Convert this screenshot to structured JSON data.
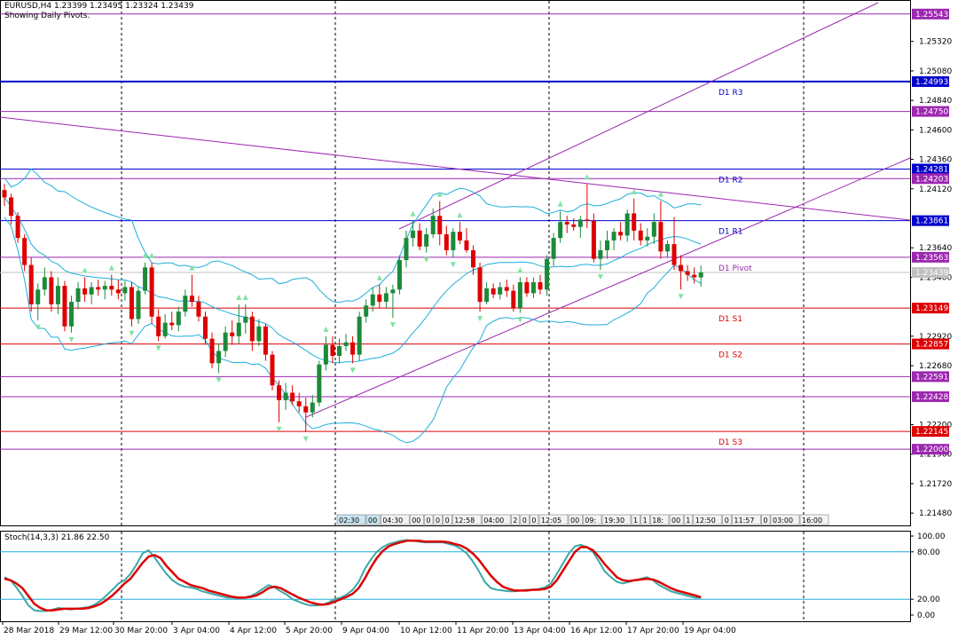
{
  "header": {
    "symbol_line": "EURUSD,H4  1.23399 1.23495 1.23324 1.23439",
    "subtitle": "Showing Daily Pivots."
  },
  "stoch_panel": {
    "label": "Stoch(14,3,3) 21.86 22.50"
  },
  "chart_data": {
    "type": "candlestick",
    "instrument": "EURUSD",
    "timeframe": "H4",
    "ohlc_current": {
      "open": 1.23399,
      "high": 1.23495,
      "low": 1.23324,
      "close": 1.23439
    },
    "price_axis": {
      "ylim": [
        1.2138,
        1.2565
      ],
      "ticks": [
        "1.25320",
        "1.25080",
        "1.24840",
        "1.24600",
        "1.24360",
        "1.24120",
        "1.23640",
        "1.23400",
        "1.22920",
        "1.22680",
        "1.22200",
        "1.21960",
        "1.21720",
        "1.21480"
      ]
    },
    "price_labels": [
      {
        "value": 1.25543,
        "text": "1.25543",
        "color": "#9c27b0"
      },
      {
        "value": 1.24993,
        "text": "1.24993",
        "color": "#0000cd"
      },
      {
        "value": 1.2475,
        "text": "1.24750",
        "color": "#9c27b0"
      },
      {
        "value": 1.24281,
        "text": "1.24281",
        "color": "#0000cd"
      },
      {
        "value": 1.24203,
        "text": "1.24203",
        "color": "#9c27b0"
      },
      {
        "value": 1.23861,
        "text": "1.23861",
        "color": "#0000cd"
      },
      {
        "value": 1.23563,
        "text": "1.23563",
        "color": "#9c27b0"
      },
      {
        "value": 1.23439,
        "text": "1.23439",
        "color": "#c0c0c0"
      },
      {
        "value": 1.23149,
        "text": "1.23149",
        "color": "#dd0000"
      },
      {
        "value": 1.22857,
        "text": "1.22857",
        "color": "#dd0000"
      },
      {
        "value": 1.22591,
        "text": "1.22591",
        "color": "#9c27b0"
      },
      {
        "value": 1.22428,
        "text": "1.22428",
        "color": "#9c27b0"
      },
      {
        "value": 1.22145,
        "text": "1.22145",
        "color": "#dd0000"
      },
      {
        "value": 1.22,
        "text": "1.22000",
        "color": "#9c27b0"
      }
    ],
    "pivots": [
      {
        "name": "D1 R3",
        "value": 1.24993,
        "color": "#0000cd"
      },
      {
        "name": "D1 R2",
        "value": 1.24281,
        "color": "#0000cd"
      },
      {
        "name": "D1 R1",
        "value": 1.23861,
        "color": "#0000cd"
      },
      {
        "name": "D1 Pivot",
        "value": 1.23563,
        "color": "#9c27b0"
      },
      {
        "name": "D1 S1",
        "value": 1.23149,
        "color": "#dd0000"
      },
      {
        "name": "D1 S2",
        "value": 1.22857,
        "color": "#dd0000"
      },
      {
        "name": "D1 S3",
        "value": 1.22145,
        "color": "#dd0000"
      }
    ],
    "horizontal_levels": [
      1.25543,
      1.2475,
      1.24203,
      1.22591,
      1.22428,
      1.22
    ],
    "x_labels": [
      "28 Mar 2018",
      "29 Mar 12:00",
      "30 Mar 20:00",
      "3 Apr 04:00",
      "4 Apr 12:00",
      "5 Apr 20:00",
      "9 Apr 04:00",
      "10 Apr 12:00",
      "11 Apr 20:00",
      "13 Apr 04:00",
      "16 Apr 12:00",
      "17 Apr 20:00",
      "19 Apr 04:00"
    ],
    "candles": [
      [
        1.2411,
        1.2416,
        1.2398,
        1.2405
      ],
      [
        1.2405,
        1.2408,
        1.2383,
        1.239
      ],
      [
        1.239,
        1.2393,
        1.2368,
        1.2372
      ],
      [
        1.2372,
        1.2375,
        1.2345,
        1.235
      ],
      [
        1.235,
        1.2356,
        1.2312,
        1.2318
      ],
      [
        1.2318,
        1.2335,
        1.2305,
        1.233
      ],
      [
        1.233,
        1.2348,
        1.2325,
        1.234
      ],
      [
        1.234,
        1.2345,
        1.2312,
        1.2318
      ],
      [
        1.2318,
        1.234,
        1.231,
        1.2333
      ],
      [
        1.2333,
        1.2337,
        1.2296,
        1.23
      ],
      [
        1.23,
        1.2325,
        1.2295,
        1.232
      ],
      [
        1.232,
        1.2336,
        1.2314,
        1.2331
      ],
      [
        1.2331,
        1.234,
        1.232,
        1.2326
      ],
      [
        1.2326,
        1.2336,
        1.2318,
        1.2332
      ],
      [
        1.2332,
        1.2338,
        1.2325,
        1.233
      ],
      [
        1.233,
        1.2337,
        1.2322,
        1.2333
      ],
      [
        1.2333,
        1.2342,
        1.2325,
        1.233
      ],
      [
        1.233,
        1.2338,
        1.2322,
        1.2327
      ],
      [
        1.2327,
        1.2337,
        1.2321,
        1.2332
      ],
      [
        1.2332,
        1.2336,
        1.23,
        1.2306
      ],
      [
        1.2306,
        1.2332,
        1.2302,
        1.2329
      ],
      [
        1.2329,
        1.2352,
        1.2326,
        1.2348
      ],
      [
        1.2348,
        1.2352,
        1.2302,
        1.2308
      ],
      [
        1.2308,
        1.2314,
        1.2288,
        1.2292
      ],
      [
        1.2292,
        1.231,
        1.229,
        1.2303
      ],
      [
        1.2303,
        1.2312,
        1.2297,
        1.2301
      ],
      [
        1.2301,
        1.2316,
        1.2296,
        1.2312
      ],
      [
        1.2312,
        1.233,
        1.2308,
        1.2325
      ],
      [
        1.2325,
        1.2342,
        1.2316,
        1.232
      ],
      [
        1.232,
        1.2325,
        1.2304,
        1.2308
      ],
      [
        1.2308,
        1.2312,
        1.2285,
        1.229
      ],
      [
        1.229,
        1.2295,
        1.2266,
        1.227
      ],
      [
        1.227,
        1.2286,
        1.2262,
        1.228
      ],
      [
        1.228,
        1.23,
        1.2275,
        1.2295
      ],
      [
        1.2295,
        1.2305,
        1.2285,
        1.2292
      ],
      [
        1.2292,
        1.2318,
        1.2286,
        1.2303
      ],
      [
        1.2303,
        1.2318,
        1.2294,
        1.2308
      ],
      [
        1.2308,
        1.2312,
        1.228,
        1.2288
      ],
      [
        1.2288,
        1.2306,
        1.2284,
        1.23
      ],
      [
        1.23,
        1.2302,
        1.2272,
        1.2277
      ],
      [
        1.2277,
        1.228,
        1.2248,
        1.2252
      ],
      [
        1.2252,
        1.2256,
        1.2222,
        1.224
      ],
      [
        1.224,
        1.2254,
        1.2232,
        1.2246
      ],
      [
        1.2246,
        1.2252,
        1.2236,
        1.2239
      ],
      [
        1.2239,
        1.2246,
        1.223,
        1.2235
      ],
      [
        1.2235,
        1.2242,
        1.2214,
        1.223
      ],
      [
        1.223,
        1.2244,
        1.2226,
        1.2238
      ],
      [
        1.2238,
        1.2272,
        1.2235,
        1.2269
      ],
      [
        1.2269,
        1.2292,
        1.2264,
        1.2285
      ],
      [
        1.2285,
        1.2292,
        1.227,
        1.2276
      ],
      [
        1.2276,
        1.229,
        1.227,
        1.2284
      ],
      [
        1.2284,
        1.2294,
        1.228,
        1.2287
      ],
      [
        1.2287,
        1.2292,
        1.227,
        1.2277
      ],
      [
        1.2277,
        1.2312,
        1.2272,
        1.2308
      ],
      [
        1.2308,
        1.2322,
        1.2303,
        1.2317
      ],
      [
        1.2317,
        1.2332,
        1.2312,
        1.2326
      ],
      [
        1.2326,
        1.2334,
        1.2315,
        1.232
      ],
      [
        1.232,
        1.2332,
        1.2315,
        1.2327
      ],
      [
        1.2327,
        1.2334,
        1.2307,
        1.233
      ],
      [
        1.233,
        1.2358,
        1.2326,
        1.2354
      ],
      [
        1.2354,
        1.2378,
        1.2348,
        1.2372
      ],
      [
        1.2372,
        1.2386,
        1.2365,
        1.2378
      ],
      [
        1.2378,
        1.2384,
        1.2362,
        1.2365
      ],
      [
        1.2365,
        1.238,
        1.236,
        1.2375
      ],
      [
        1.2375,
        1.2396,
        1.2372,
        1.239
      ],
      [
        1.239,
        1.2402,
        1.2366,
        1.2375
      ],
      [
        1.2375,
        1.2382,
        1.2358,
        1.2362
      ],
      [
        1.2362,
        1.238,
        1.2356,
        1.2377
      ],
      [
        1.2377,
        1.2385,
        1.2367,
        1.237
      ],
      [
        1.237,
        1.238,
        1.236,
        1.2362
      ],
      [
        1.2362,
        1.2366,
        1.2342,
        1.2348
      ],
      [
        1.2348,
        1.2352,
        1.2312,
        1.232
      ],
      [
        1.232,
        1.2336,
        1.2318,
        1.2331
      ],
      [
        1.2331,
        1.2335,
        1.2323,
        1.2326
      ],
      [
        1.2326,
        1.2336,
        1.2322,
        1.2332
      ],
      [
        1.2332,
        1.2338,
        1.2324,
        1.2329
      ],
      [
        1.2329,
        1.2334,
        1.2312,
        1.2315
      ],
      [
        1.2315,
        1.234,
        1.2311,
        1.2336
      ],
      [
        1.2336,
        1.234,
        1.2324,
        1.2327
      ],
      [
        1.2327,
        1.234,
        1.2323,
        1.2336
      ],
      [
        1.2336,
        1.2342,
        1.2326,
        1.233
      ],
      [
        1.233,
        1.2358,
        1.2325,
        1.2355
      ],
      [
        1.2355,
        1.2376,
        1.2349,
        1.2372
      ],
      [
        1.2372,
        1.2394,
        1.2368,
        1.2385
      ],
      [
        1.2385,
        1.239,
        1.2376,
        1.2383
      ],
      [
        1.2383,
        1.2388,
        1.2378,
        1.2381
      ],
      [
        1.2381,
        1.239,
        1.2372,
        1.2387
      ],
      [
        1.2387,
        1.2416,
        1.238,
        1.2386
      ],
      [
        1.2386,
        1.2392,
        1.2352,
        1.2355
      ],
      [
        1.2355,
        1.237,
        1.2346,
        1.2362
      ],
      [
        1.2362,
        1.2378,
        1.2355,
        1.237
      ],
      [
        1.237,
        1.238,
        1.2362,
        1.2377
      ],
      [
        1.2377,
        1.2385,
        1.237,
        1.2374
      ],
      [
        1.2374,
        1.2395,
        1.2369,
        1.2392
      ],
      [
        1.2392,
        1.2404,
        1.237,
        1.2378
      ],
      [
        1.2378,
        1.2384,
        1.2366,
        1.237
      ],
      [
        1.237,
        1.238,
        1.2365,
        1.2373
      ],
      [
        1.2373,
        1.2392,
        1.2367,
        1.2385
      ],
      [
        1.2385,
        1.2402,
        1.2355,
        1.2361
      ],
      [
        1.2361,
        1.237,
        1.2356,
        1.2367
      ],
      [
        1.2367,
        1.2389,
        1.2346,
        1.235
      ],
      [
        1.235,
        1.2358,
        1.233,
        1.2345
      ],
      [
        1.2345,
        1.235,
        1.2337,
        1.2342
      ],
      [
        1.2342,
        1.2348,
        1.2335,
        1.234
      ],
      [
        1.23399,
        1.23495,
        1.23324,
        1.23439
      ]
    ],
    "stochastic": {
      "name": "Stoch(14,3,3)",
      "values": [
        21.86,
        22.5
      ],
      "ylim": [
        0,
        100
      ],
      "levels": [
        80,
        20
      ],
      "ticks": [
        "100.00",
        "80.00",
        "20.00",
        "0.00"
      ],
      "main": [
        48,
        44,
        35,
        24,
        12,
        6,
        5,
        5,
        7,
        9,
        8,
        7,
        8,
        9,
        10,
        13,
        18,
        25,
        32,
        40,
        44,
        52,
        64,
        78,
        82,
        73,
        62,
        52,
        44,
        39,
        36,
        35,
        33,
        30,
        28,
        26,
        24,
        22,
        22,
        21,
        22,
        24,
        28,
        33,
        38,
        35,
        30,
        26,
        20,
        17,
        14,
        12,
        12,
        13,
        16,
        20,
        22,
        26,
        32,
        42,
        58,
        70,
        80,
        86,
        90,
        92,
        94,
        95,
        94,
        93,
        92,
        92,
        92,
        92,
        90,
        88,
        84,
        78,
        68,
        56,
        42,
        34,
        32,
        31,
        30,
        30,
        31,
        32,
        32,
        33,
        35,
        40,
        52,
        65,
        78,
        87,
        89,
        86,
        80,
        68,
        55,
        48,
        42,
        40,
        42,
        44,
        46,
        48,
        44,
        38,
        34,
        30,
        28,
        26,
        24,
        22,
        21.86
      ],
      "signal": [
        46,
        44,
        40,
        34,
        24,
        14,
        9,
        6,
        6,
        7,
        8,
        8,
        8,
        8,
        9,
        11,
        14,
        19,
        25,
        32,
        40,
        46,
        56,
        66,
        74,
        76,
        72,
        62,
        54,
        46,
        42,
        38,
        36,
        34,
        31,
        29,
        27,
        25,
        23,
        22,
        22,
        23,
        25,
        29,
        34,
        36,
        34,
        30,
        26,
        22,
        19,
        16,
        14,
        13,
        14,
        17,
        20,
        23,
        27,
        34,
        46,
        60,
        72,
        81,
        87,
        90,
        92,
        94,
        94,
        94,
        93,
        93,
        93,
        93,
        92,
        90,
        88,
        84,
        78,
        70,
        60,
        50,
        42,
        36,
        33,
        31,
        31,
        31,
        32,
        32,
        33,
        36,
        44,
        56,
        68,
        80,
        86,
        86,
        82,
        74,
        64,
        56,
        48,
        44,
        43,
        44,
        45,
        46,
        45,
        42,
        38,
        34,
        31,
        29,
        27,
        25,
        22.5
      ]
    },
    "time_boxes": [
      "02:30",
      "00",
      "04:30",
      "00",
      "0",
      "0",
      "0",
      "12:58",
      "04:00",
      "2",
      "0",
      "0",
      "12:05",
      "00",
      "09:",
      "19:30",
      "1",
      "1",
      "18:",
      "00",
      "1",
      "12:50",
      "0",
      "11:57",
      "0",
      "03:00",
      "16:00",
      "00",
      "03:00"
    ]
  }
}
